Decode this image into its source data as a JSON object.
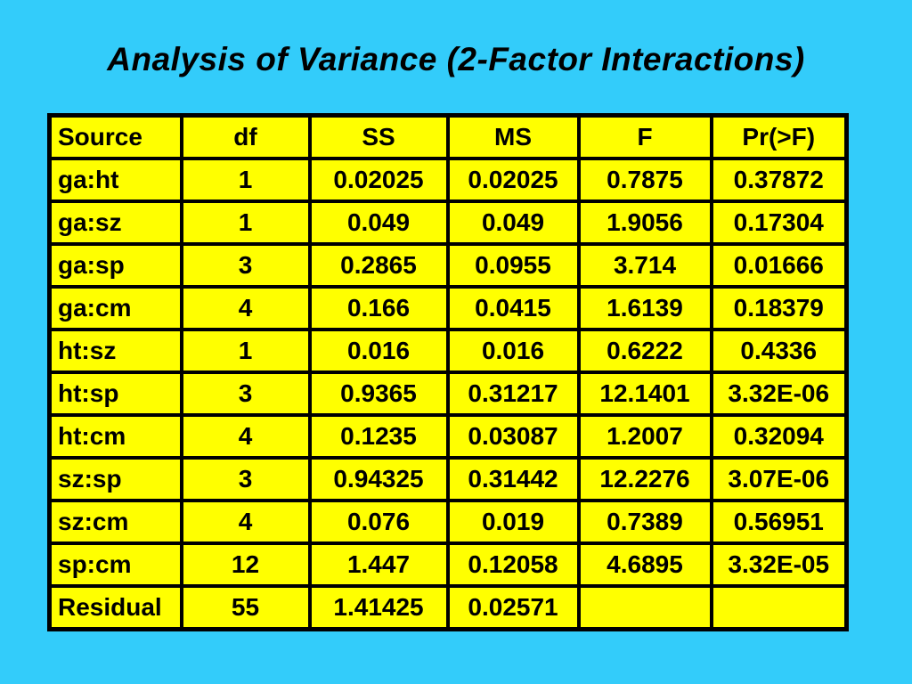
{
  "slide": {
    "title": "Analysis of Variance (2-Factor Interactions)",
    "background_color": "#33CCFA",
    "table": {
      "cell_color": "#FFFF00",
      "border_color": "#000000",
      "text_color": "#000000",
      "columns": [
        "Source",
        "df",
        "SS",
        "MS",
        "F",
        "Pr(>F)"
      ],
      "rows": [
        [
          "ga:ht",
          "1",
          "0.02025",
          "0.02025",
          "0.7875",
          "0.37872"
        ],
        [
          "ga:sz",
          "1",
          "0.049",
          "0.049",
          "1.9056",
          "0.17304"
        ],
        [
          "ga:sp",
          "3",
          "0.2865",
          "0.0955",
          "3.714",
          "0.01666"
        ],
        [
          "ga:cm",
          "4",
          "0.166",
          "0.0415",
          "1.6139",
          "0.18379"
        ],
        [
          "ht:sz",
          "1",
          "0.016",
          "0.016",
          "0.6222",
          "0.4336"
        ],
        [
          "ht:sp",
          "3",
          "0.9365",
          "0.31217",
          "12.1401",
          "3.32E-06"
        ],
        [
          "ht:cm",
          "4",
          "0.1235",
          "0.03087",
          "1.2007",
          "0.32094"
        ],
        [
          "sz:sp",
          "3",
          "0.94325",
          "0.31442",
          "12.2276",
          "3.07E-06"
        ],
        [
          "sz:cm",
          "4",
          "0.076",
          "0.019",
          "0.7389",
          "0.56951"
        ],
        [
          "sp:cm",
          "12",
          "1.447",
          "0.12058",
          "4.6895",
          "3.32E-05"
        ],
        [
          "Residual",
          "55",
          "1.41425",
          "0.02571",
          "",
          ""
        ]
      ]
    }
  }
}
